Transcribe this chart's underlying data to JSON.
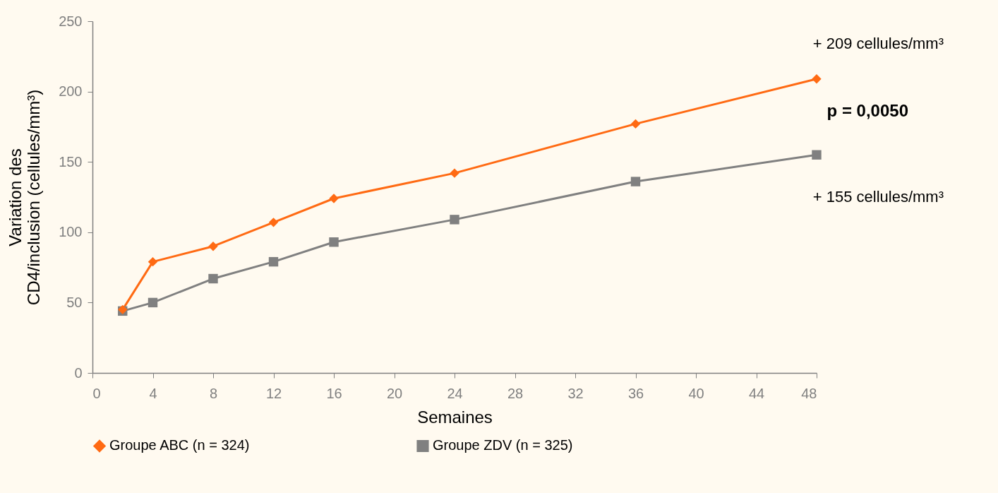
{
  "chart_data": {
    "type": "line",
    "xlabel": "Semaines",
    "ylabel": "Variation des\nCD4/inclusion (cellules/mm³)",
    "x": [
      2,
      4,
      8,
      12,
      16,
      24,
      36,
      48
    ],
    "series": [
      {
        "name": "Groupe ABC (n = 324)",
        "color": "#ff6a13",
        "marker": "diamond",
        "values": [
          45,
          79,
          90,
          107,
          124,
          142,
          177,
          209
        ]
      },
      {
        "name": "Groupe ZDV (n = 325)",
        "color": "#808080",
        "marker": "square",
        "values": [
          44,
          50,
          67,
          79,
          93,
          109,
          136,
          155
        ]
      }
    ],
    "xlim": [
      0,
      48
    ],
    "xticks": [
      0,
      4,
      8,
      12,
      16,
      20,
      24,
      28,
      32,
      36,
      40,
      44,
      48
    ],
    "ylim": [
      0,
      250
    ],
    "yticks": [
      0,
      50,
      100,
      150,
      200,
      250
    ],
    "grid": false,
    "legend": "bottom",
    "line_style": "solid",
    "annotations": [
      {
        "text": "+ 209 cellules/mm³",
        "x": 48,
        "y": 209
      },
      {
        "text": "+ 155 cellules/mm³",
        "x": 48,
        "y": 155
      },
      "p = 0,0050"
    ]
  }
}
